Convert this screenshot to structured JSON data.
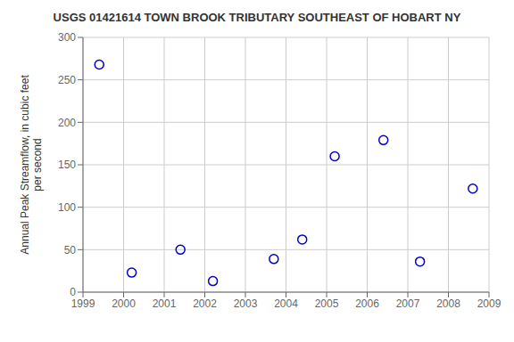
{
  "chart_data": {
    "type": "scatter",
    "title": "USGS 01421614 TOWN BROOK TRIBUTARY SOUTHEAST OF HOBART NY",
    "ylabel": "Annual Peak Streamflow, in cubic feet\nper second",
    "x": [
      1999.4,
      2000.2,
      2001.4,
      2002.2,
      2003.7,
      2004.4,
      2005.2,
      2006.4,
      2007.3,
      2008.6
    ],
    "values": [
      268,
      23,
      50,
      13,
      39,
      62,
      160,
      179,
      36,
      122
    ],
    "xlim": [
      1999,
      2009
    ],
    "ylim": [
      0,
      300
    ],
    "xticks": [
      1999,
      2000,
      2001,
      2002,
      2003,
      2004,
      2005,
      2006,
      2007,
      2008,
      2009
    ],
    "yticks": [
      0,
      50,
      100,
      150,
      200,
      250,
      300
    ],
    "color": "#0000cc",
    "marker": "circle",
    "grid": true
  }
}
